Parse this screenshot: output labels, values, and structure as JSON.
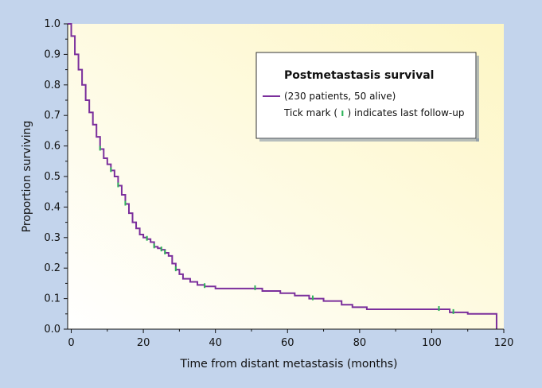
{
  "chart_data": {
    "type": "line",
    "title": "",
    "xlabel": "Time from distant metastasis (months)",
    "ylabel": "Proportion surviving",
    "xlim": [
      -1,
      120
    ],
    "ylim": [
      0,
      1.0
    ],
    "xticks": [
      0,
      20,
      40,
      60,
      80,
      100,
      120
    ],
    "yticks": [
      0.0,
      0.1,
      0.2,
      0.3,
      0.4,
      0.5,
      0.6,
      0.7,
      0.8,
      0.9,
      1.0
    ],
    "ytick_labels": [
      "0.0",
      "0.1",
      "0.2",
      "0.3",
      "0.4",
      "0.5",
      "0.6",
      "0.7",
      "0.8",
      "0.9",
      "1.0"
    ],
    "grid": false,
    "legend": {
      "position": "top-right",
      "title": "Postmetastasis survival",
      "series_label": "(230 patients, 50 alive)",
      "note": "Tick mark ( ) indicates last follow-up",
      "note_prefix": "Tick mark (",
      "note_suffix": ") indicates last follow-up"
    },
    "series": [
      {
        "name": "(230 patients, 50 alive)",
        "step": true,
        "x": [
          -1,
          0,
          1,
          2,
          3,
          4,
          5,
          6,
          7,
          8,
          9,
          10,
          11,
          12,
          13,
          14,
          15,
          16,
          17,
          18,
          19,
          20,
          21,
          22,
          23,
          24,
          25,
          26,
          27,
          28,
          29,
          30,
          31,
          33,
          35,
          37,
          40,
          45,
          50,
          53,
          58,
          62,
          66,
          70,
          75,
          78,
          82,
          90,
          100,
          105,
          110,
          118
        ],
        "y": [
          1.0,
          0.96,
          0.9,
          0.85,
          0.8,
          0.75,
          0.71,
          0.67,
          0.63,
          0.59,
          0.56,
          0.54,
          0.52,
          0.5,
          0.47,
          0.44,
          0.41,
          0.38,
          0.35,
          0.33,
          0.31,
          0.3,
          0.295,
          0.285,
          0.27,
          0.265,
          0.26,
          0.25,
          0.24,
          0.215,
          0.195,
          0.18,
          0.165,
          0.155,
          0.145,
          0.14,
          0.133,
          0.133,
          0.133,
          0.125,
          0.118,
          0.11,
          0.1,
          0.092,
          0.08,
          0.072,
          0.065,
          0.065,
          0.065,
          0.055,
          0.05,
          0.0
        ],
        "censor_x": [
          8,
          11,
          13,
          15,
          21,
          23,
          25,
          26,
          29,
          37,
          51,
          67,
          102,
          106
        ],
        "color": "#7b2f9c",
        "censor_color": "#2fb45a"
      }
    ],
    "background_color": "#fef9d2",
    "page_color": "#c3d4ec"
  }
}
